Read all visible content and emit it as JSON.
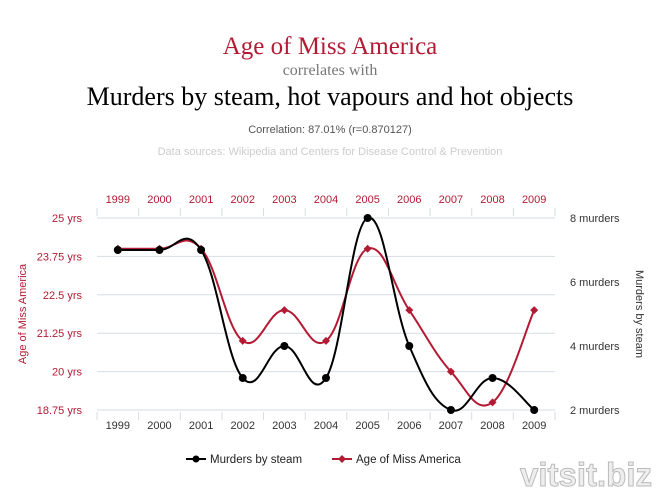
{
  "header": {
    "title": "Age of Miss America",
    "connector": "correlates with",
    "subtitle": "Murders by steam, hot vapours and hot objects",
    "correlation": "Correlation: 87.01% (r=0.870127)",
    "sources": "Data sources: Wikipedia and Centers for Disease Control & Prevention"
  },
  "watermark": "vitsit.biz",
  "colors": {
    "age_series": "#b31b34",
    "murders_series": "#000000",
    "title": "#b31b34",
    "muted_text": "#777777",
    "faint_text": "#cccccc",
    "grid": "#d7dde3"
  },
  "chart_data": {
    "type": "line",
    "x": [
      1999,
      2000,
      2001,
      2002,
      2003,
      2004,
      2005,
      2006,
      2007,
      2008,
      2009
    ],
    "x_tick_labels": [
      "1999",
      "2000",
      "2001",
      "2002",
      "2003",
      "2004",
      "2005",
      "2006",
      "2007",
      "2008",
      "2009"
    ],
    "series": [
      {
        "name": "Murders by steam",
        "axis": "right",
        "color": "#000000",
        "marker": "circle",
        "values": [
          7,
          7,
          7,
          3,
          4,
          3,
          8,
          4,
          2,
          3,
          2
        ]
      },
      {
        "name": "Age of Miss America",
        "axis": "left",
        "color": "#b31b34",
        "marker": "diamond",
        "values": [
          24,
          24,
          24,
          21,
          22,
          21,
          24,
          22,
          20,
          19,
          22
        ]
      }
    ],
    "y_left": {
      "label": "Age of Miss America",
      "ticks": [
        25,
        23.75,
        22.5,
        21.25,
        20,
        18.75
      ],
      "tick_labels": [
        "25 yrs",
        "23.75 yrs",
        "22.5 yrs",
        "21.25 yrs",
        "20 yrs",
        "18.75 yrs"
      ],
      "range": [
        18.75,
        25
      ]
    },
    "y_right": {
      "label": "Murders by steam",
      "ticks": [
        8,
        6,
        4,
        2
      ],
      "tick_labels": [
        "8 murders",
        "6 murders",
        "4 murders",
        "2 murders"
      ],
      "range": [
        2,
        8
      ]
    },
    "legend_position": "bottom-center",
    "grid": true
  }
}
